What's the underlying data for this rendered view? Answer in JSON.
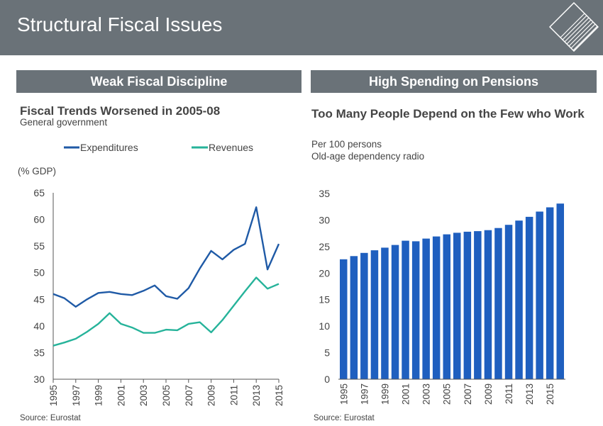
{
  "header": {
    "title": "Structural Fiscal Issues"
  },
  "left_panel": {
    "heading": "Weak Fiscal Discipline",
    "source": "Source: Eurostat"
  },
  "right_panel": {
    "heading": "High Spending on Pensions",
    "source": "Source: Eurostat"
  },
  "colors": {
    "expenditures": "#1f5aa6",
    "revenues": "#26b39a",
    "bars": "#1f5fbf",
    "header_bg": "#6a7278"
  },
  "chart_data": [
    {
      "type": "line",
      "title": "Fiscal Trends Worsened in 2005-08",
      "subtitle": "General government",
      "ylabel": "(% GDP)",
      "ylim": [
        30,
        65
      ],
      "yticks": [
        "30",
        "35",
        "40",
        "45",
        "50",
        "55",
        "60",
        "65"
      ],
      "x": [
        1995,
        1996,
        1997,
        1998,
        1999,
        2000,
        2001,
        2002,
        2003,
        2004,
        2005,
        2006,
        2007,
        2008,
        2009,
        2010,
        2011,
        2012,
        2013,
        2014,
        2015
      ],
      "xticks": [
        "1995",
        "1997",
        "1999",
        "2001",
        "2003",
        "2005",
        "2007",
        "2009",
        "2011",
        "2013",
        "2015"
      ],
      "series": [
        {
          "name": "Expenditures",
          "values": [
            46.0,
            45.2,
            43.6,
            45.0,
            46.2,
            46.4,
            46.0,
            45.8,
            46.6,
            47.6,
            45.6,
            45.1,
            47.1,
            50.8,
            54.1,
            52.5,
            54.3,
            55.4,
            62.3,
            50.6,
            55.4
          ]
        },
        {
          "name": "Revenues",
          "values": [
            36.3,
            36.9,
            37.6,
            38.9,
            40.4,
            42.4,
            40.4,
            39.7,
            38.7,
            38.7,
            39.3,
            39.2,
            40.4,
            40.7,
            38.8,
            41.1,
            43.8,
            46.5,
            49.1,
            47.0,
            47.9
          ]
        }
      ]
    },
    {
      "type": "bar",
      "title": "Too Many People Depend on the Few who Work",
      "subtitle": "Per 100 persons",
      "subtitle2": "Old-age dependency radio",
      "ylim": [
        0,
        35
      ],
      "yticks": [
        "0",
        "5",
        "10",
        "15",
        "20",
        "25",
        "30",
        "35"
      ],
      "categories": [
        "1995",
        "1996",
        "1997",
        "1998",
        "1999",
        "2000",
        "2001",
        "2002",
        "2003",
        "2004",
        "2005",
        "2006",
        "2007",
        "2008",
        "2009",
        "2010",
        "2011",
        "2012",
        "2013",
        "2014",
        "2015",
        "2016"
      ],
      "xticks": [
        "1995",
        "1997",
        "1999",
        "2001",
        "2003",
        "2005",
        "2007",
        "2009",
        "2011",
        "2013",
        "2015"
      ],
      "values": [
        22.6,
        23.2,
        23.8,
        24.3,
        24.8,
        25.3,
        26.1,
        26.0,
        26.5,
        26.9,
        27.3,
        27.6,
        27.8,
        27.9,
        28.1,
        28.5,
        29.1,
        29.9,
        30.6,
        31.6,
        32.4,
        33.1
      ]
    }
  ]
}
